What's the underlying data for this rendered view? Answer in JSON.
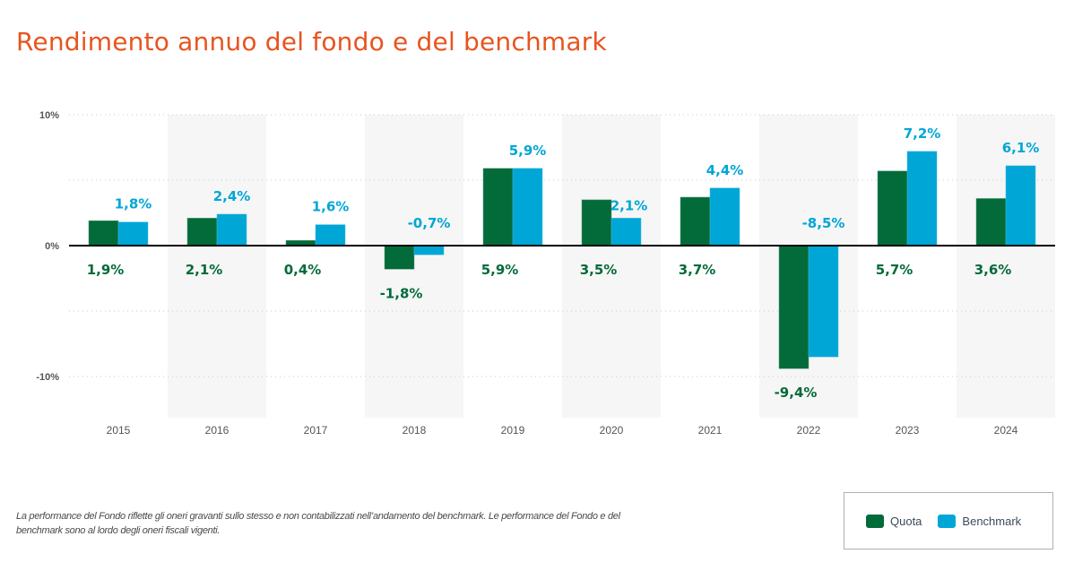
{
  "title": "Rendimento annuo del fondo e del benchmark",
  "footnote": "La performance del Fondo riflette gli oneri gravanti sullo stesso e non contabilizzati nell’andamento del benchmark. Le performance del Fondo e del benchmark sono al lordo degli oneri fiscali vigenti.",
  "colors": {
    "title": "#e8541f",
    "quota": "#036b39",
    "benchmark": "#00a6d6",
    "band": "#f6f6f6"
  },
  "chart_data": {
    "type": "bar",
    "title": "Rendimento annuo del fondo e del benchmark",
    "xlabel": "",
    "ylabel": "",
    "categories": [
      "2015",
      "2016",
      "2017",
      "2018",
      "2019",
      "2020",
      "2021",
      "2022",
      "2023",
      "2024"
    ],
    "series": [
      {
        "name": "Quota",
        "color": "#036b39",
        "values": [
          1.9,
          2.1,
          0.4,
          -1.8,
          5.9,
          3.5,
          3.7,
          -9.4,
          5.7,
          3.6
        ],
        "labels": [
          "1,9%",
          "2,1%",
          "0,4%",
          "-1,8%",
          "5,9%",
          "3,5%",
          "3,7%",
          "-9,4%",
          "5,7%",
          "3,6%"
        ]
      },
      {
        "name": "Benchmark",
        "color": "#00a6d6",
        "values": [
          1.8,
          2.4,
          1.6,
          -0.7,
          5.9,
          2.1,
          4.4,
          -8.5,
          7.2,
          6.1
        ],
        "labels": [
          "1,8%",
          "2,4%",
          "1,6%",
          "-0,7%",
          "5,9%",
          "2,1%",
          "4,4%",
          "-8,5%",
          "7,2%",
          "6,1%"
        ]
      }
    ],
    "ylim": [
      -13,
      10
    ],
    "yticks": [
      10,
      0,
      -10
    ],
    "ytick_labels": [
      "10%",
      "0%",
      "-10%"
    ],
    "gridlines": [
      10,
      5,
      -5,
      -10
    ],
    "grid": true,
    "legend": {
      "position": "bottom-right",
      "entries": [
        "Quota",
        "Benchmark"
      ]
    }
  }
}
